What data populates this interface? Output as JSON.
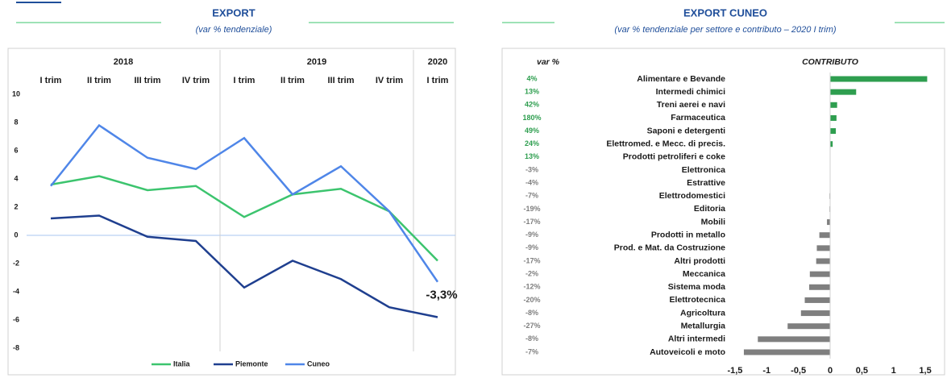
{
  "chart_data": [
    {
      "type": "line",
      "title": "EXPORT",
      "subtitle": "(var % tendenziale)",
      "groups": [
        {
          "name": "2018",
          "categories": [
            "I trim",
            "II trim",
            "III trim",
            "IV trim"
          ]
        },
        {
          "name": "2019",
          "categories": [
            "I trim",
            "II trim",
            "III trim",
            "IV trim"
          ]
        },
        {
          "name": "2020",
          "categories": [
            "I trim"
          ]
        }
      ],
      "series": [
        {
          "name": "Italia",
          "color": "#3cc46e",
          "values": [
            3.6,
            4.2,
            3.2,
            3.5,
            1.3,
            2.9,
            3.3,
            1.7,
            -1.8
          ]
        },
        {
          "name": "Piemonte",
          "color": "#1f3f8f",
          "values": [
            1.2,
            1.4,
            -0.1,
            -0.4,
            -3.7,
            -1.8,
            -3.1,
            -5.1,
            -5.8
          ]
        },
        {
          "name": "Cuneo",
          "color": "#4f86e8",
          "values": [
            3.5,
            7.8,
            5.5,
            4.7,
            6.9,
            2.9,
            4.9,
            1.7,
            -3.3
          ]
        }
      ],
      "annotation": "-3,3%",
      "ylim": [
        -8,
        10
      ],
      "yticks": [
        -8,
        -6,
        -4,
        -2,
        0,
        2,
        4,
        6,
        8,
        10
      ],
      "zero_line": true,
      "legend": "bottom"
    },
    {
      "type": "hbar",
      "title": "EXPORT CUNEO",
      "subtitle": "(var % tendenziale per settore e contributo – 2020 I trim)",
      "var_header": "var %",
      "value_header": "CONTRIBUTO",
      "categories": [
        "Alimentare e Bevande",
        "Intermedi chimici",
        "Treni aerei e navi",
        "Farmaceutica",
        "Saponi e detergenti",
        "Elettromed. e Mecc. di precis.",
        "Prodotti petroliferi e coke",
        "Elettronica",
        "Estrattive",
        "Elettrodomestici",
        "Editoria",
        "Mobili",
        "Prodotti in metallo",
        "Prod. e Mat. da Costruzione",
        "Altri prodotti",
        "Meccanica",
        "Sistema moda",
        "Elettrotecnica",
        "Agricoltura",
        "Metallurgia",
        "Altri intermedi",
        "Autoveicoli e moto"
      ],
      "var_pct": [
        "4%",
        "13%",
        "42%",
        "180%",
        "49%",
        "24%",
        "13%",
        "-3%",
        "-4%",
        "-7%",
        "-19%",
        "-17%",
        "-9%",
        "-9%",
        "-17%",
        "-2%",
        "-12%",
        "-20%",
        "-8%",
        "-27%",
        "-8%",
        "-7%"
      ],
      "values": [
        1.53,
        0.41,
        0.11,
        0.1,
        0.09,
        0.04,
        0.0,
        0.0,
        0.0,
        -0.01,
        -0.01,
        -0.05,
        -0.17,
        -0.21,
        -0.22,
        -0.32,
        -0.33,
        -0.4,
        -0.46,
        -0.67,
        -1.14,
        -1.36
      ],
      "colors": {
        "positive": "#2e9e4f",
        "negative": "#7f7f7f"
      },
      "xlim": [
        -1.55,
        1.55
      ],
      "xticks": [
        {
          "value": -1.5,
          "label": "-1,5"
        },
        -1,
        {
          "value": -0.5,
          "label": "-0,5"
        },
        0,
        {
          "value": 0.5,
          "label": "0,5"
        },
        1,
        {
          "value": 1.5,
          "label": "1,5"
        }
      ]
    }
  ]
}
